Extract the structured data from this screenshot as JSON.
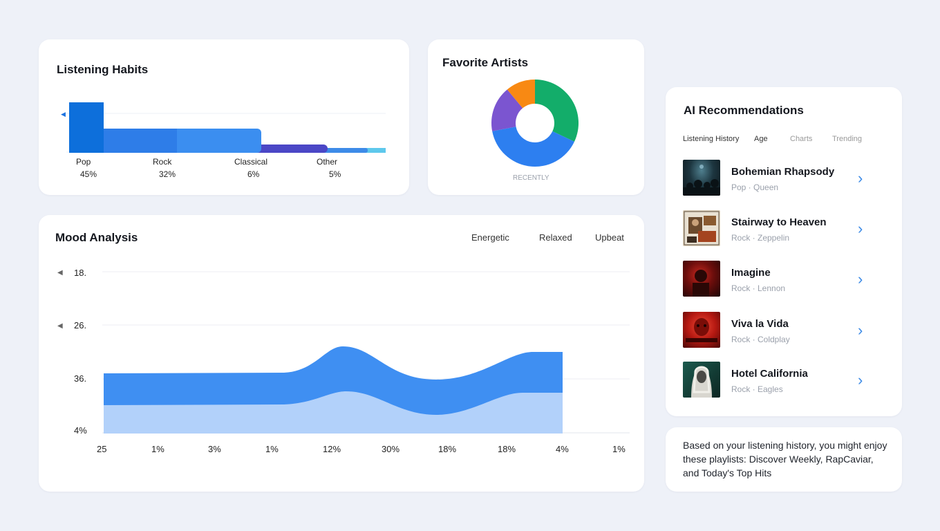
{
  "listening_habits": {
    "title": "Listening Habits",
    "categories": [
      {
        "label": "Pop",
        "percent": "45%"
      },
      {
        "label": "Rock",
        "percent": "32%"
      },
      {
        "label": "Classical",
        "percent": "6%"
      },
      {
        "label": "Other",
        "percent": "5%"
      }
    ],
    "colors": [
      "#0d6fdb",
      "#2e7de8",
      "#3b8ef0",
      "#4b47c6",
      "#3d8be8",
      "#5ec8ec"
    ]
  },
  "favorite_artists": {
    "title": "Favorite Artists",
    "caption": "RECENTLY",
    "slices": [
      {
        "value": 32,
        "color": "#13ad6a"
      },
      {
        "value": 40,
        "color": "#2d7ff0"
      },
      {
        "value": 17,
        "color": "#7b55d0"
      },
      {
        "value": 11,
        "color": "#f88913"
      }
    ]
  },
  "mood_analysis": {
    "title": "Mood Analysis",
    "legend": [
      "Energetic",
      "Relaxed",
      "Upbeat"
    ],
    "y_ticks": [
      "18.",
      "26.",
      "36.",
      "4%"
    ],
    "x_ticks": [
      "25",
      "1%",
      "3%",
      "1%",
      "12%",
      "30%",
      "18%",
      "18%",
      "4%",
      "1%"
    ],
    "colors": {
      "top": "#3f8ff2",
      "bottom": "#b2d1fa"
    }
  },
  "recommendations": {
    "title": "AI Recommendations",
    "tabs": [
      "Listening History",
      "Age",
      "Charts",
      "Trending"
    ],
    "items": [
      {
        "title": "Bohemian Rhapsody",
        "subtitle": "Pop · Queen",
        "thumb": "thumb-crowd"
      },
      {
        "title": "Stairway to Heaven",
        "subtitle": "Rock · Zeppelin",
        "thumb": "thumb-collage"
      },
      {
        "title": "Imagine",
        "subtitle": "Rock · Lennon",
        "thumb": "thumb-red-dark"
      },
      {
        "title": "Viva la Vida",
        "subtitle": "Rock · Coldplay",
        "thumb": "thumb-red-face"
      },
      {
        "title": "Hotel California",
        "subtitle": "Rock · Eagles",
        "thumb": "thumb-portrait"
      }
    ],
    "chevron": "chevron-right-icon"
  },
  "suggestion": {
    "text": "Based on your listening history, you might enjoy these playlists: Discover Weekly, RapCaviar, and Today's Top Hits"
  }
}
